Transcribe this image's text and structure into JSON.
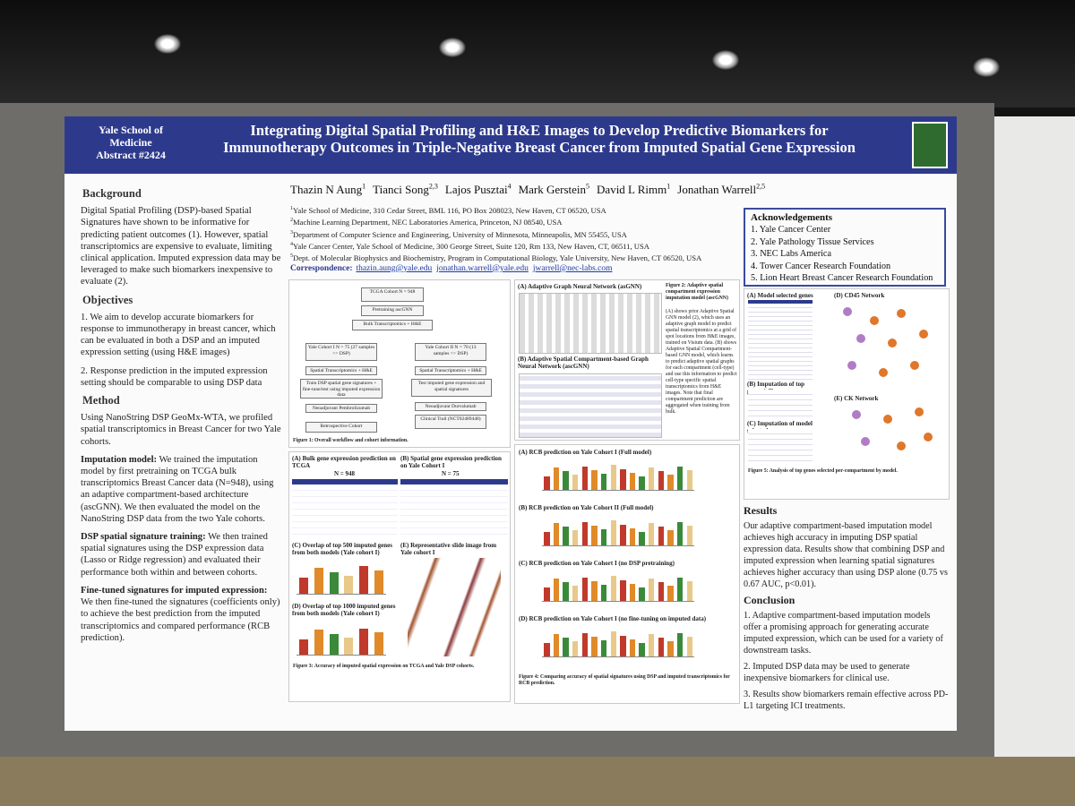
{
  "header": {
    "school": [
      "Yale School of",
      "Medicine",
      "Abstract #2424"
    ],
    "title": "Integrating Digital Spatial Profiling and H&E Images to Develop Predictive Biomarkers for Immunotherapy Outcomes in Triple-Negative Breast Cancer from Imputed Spatial Gene Expression"
  },
  "authors": [
    {
      "name": "Thazin N Aung",
      "sup": "1"
    },
    {
      "name": "Tianci Song",
      "sup": "2,3"
    },
    {
      "name": "Lajos Pusztai",
      "sup": "4"
    },
    {
      "name": "Mark Gerstein",
      "sup": "5"
    },
    {
      "name": "David L Rimm",
      "sup": "1"
    },
    {
      "name": "Jonathan Warrell",
      "sup": "2,5"
    }
  ],
  "affiliations": [
    {
      "num": "1",
      "text": "Yale School of Medicine, 310 Cedar Street, BML 116, PO Box 208023, New Haven, CT 06520, USA"
    },
    {
      "num": "2",
      "text": "Machine Learning Department, NEC Laboratories America, Princeton, NJ 08540, USA"
    },
    {
      "num": "3",
      "text": "Department of Computer Science and Engineering, University of Minnesota, Minneapolis, MN 55455, USA"
    },
    {
      "num": "4",
      "text": "Yale Cancer Center, Yale School of Medicine, 300 George Street, Suite 120, Rm 133, New Haven, CT, 06511, USA"
    },
    {
      "num": "5",
      "text": "Dept. of Molecular Biophysics and Biochemistry, Program in Computational Biology, Yale University, New Haven, CT 06520, USA"
    }
  ],
  "correspondence": {
    "label": "Correspondence:",
    "emails": [
      "thazin.aung@yale.edu",
      "jonathan.warrell@yale.edu",
      "jwarrell@nec-labs.com"
    ]
  },
  "left_column": [
    {
      "heading": "Background",
      "paragraphs": [
        {
          "lead": null,
          "text": "Digital Spatial Profiling (DSP)-based Spatial Signatures have shown to be informative for predicting patient outcomes (1). However, spatial transcriptomics are expensive to evaluate, limiting clinical application. Imputed expression data may be leveraged to make such biomarkers inexpensive to evaluate (2)."
        }
      ]
    },
    {
      "heading": "Objectives",
      "paragraphs": [
        {
          "lead": null,
          "text": "1. We aim to develop accurate biomarkers for response to immunotherapy in breast cancer, which can be evaluated in both a DSP and an imputed expression setting (using H&E images)"
        },
        {
          "lead": null,
          "text": "2. Response prediction in the imputed expression setting should be comparable to using DSP data"
        }
      ]
    },
    {
      "heading": "Method",
      "paragraphs": [
        {
          "lead": null,
          "text": "Using NanoString DSP GeoMx-WTA, we profiled spatial transcriptomics in Breast Cancer for two Yale cohorts."
        },
        {
          "lead": "Imputation model:",
          "text": "We trained the imputation model by first pretraining on TCGA bulk transcriptomics Breast Cancer data (N=948), using an adaptive compartment-based architecture (ascGNN). We then evaluated the model on the NanoString DSP data from the two Yale cohorts."
        },
        {
          "lead": "DSP spatial signature training:",
          "text": "We then trained spatial signatures using the DSP expression data (Lasso or Ridge regression) and evaluated their performance both within and between cohorts."
        },
        {
          "lead": "Fine-tuned signatures for imputed expression:",
          "text": "We then fine-tuned the signatures (coefficients only) to achieve the best prediction from the imputed transcriptomics and compared performance (RCB prediction)."
        }
      ]
    }
  ],
  "figure1": {
    "nodes": [
      "TCGA Cohort N = 948",
      "Pretraining ascGNN",
      "Bulk Transcriptomics + H&E",
      "Yale Cohort I N = 75 (27 samples >> DSP)",
      "Yale Cohort II N = 70 (13 samples >> DSP)",
      "Spatial Transcriptomics + H&E",
      "Spatial Transcriptomics + H&E",
      "Train DSP spatial gene signatures + fine-tune/test using imputed expression data",
      "Test imputed gene expression and spatial signatures",
      "Neoadjuvant Pembrolizumab",
      "Neoadjuvant Durvalumab",
      "Retrospective Cohort",
      "Clinical Trail (NCT02489448)"
    ],
    "caption": "Figure 1: Overall workflow and cohort information."
  },
  "figure2": {
    "panels": [
      "(A) Adaptive Graph Neural Network (asGNN)",
      "(B) Adaptive Spatial Compartment-based Graph Neural Network (ascGNN)"
    ],
    "caption_title": "Figure 2: Adaptive spatial compartment expression imputation model (ascGNN)",
    "caption": "(A) shows prior Adaptive Spatial GNN model (2), which uses an adaptive graph model to predict spatial transcriptomics at a grid of spot locations from H&E images, trained on Visium data. (B) shows Adaptive Spatial Compartment-based GNN model, which learns to predict adaptive spatial graphs for each compartment (cell-type) and use this information to predict cell-type specific spatial transcriptomics from H&E images. Note that final compartment prediction are aggregated when training from bulk."
  },
  "figure3": {
    "panels": [
      "(A) Bulk gene expression prediction on TCGA",
      "(B) Spatial gene expression prediction on Yale Cohort I",
      "(C) Overlap of top 500 imputed genes from both models (Yale cohort I)",
      "(D) Overlap of top 1000 imputed genes from both models (Yale cohort I)",
      "(E) Representative slide image from Yale cohort I"
    ],
    "n_labels": [
      "N = 948",
      "N = 75"
    ],
    "caption": "Figure 3: Accuracy of imputed spatial expression on TCGA and Yale DSP cohorts."
  },
  "figure4": {
    "panels": [
      "(A) RCB prediction on Yale Cohort I (Full model)",
      "(B) RCB prediction on Yale Cohort II (Full model)",
      "(C) RCB prediction on Yale Cohort I (no DSP pretraining)",
      "(D) RCB prediction on Yale Cohort I (no fine-tuning on imputed data)"
    ],
    "caption": "Figure 4: Comparing accuracy of spatial signatures using DSP and imputed transcriptomics for RCB prediction."
  },
  "acknowledgements": {
    "title": "Acknowledgements",
    "items": [
      "1. Yale Cancer Center",
      "2. Yale Pathology Tissue Services",
      "3. NEC Labs America",
      "4. Tower Cancer Research Foundation",
      "5. Lion Heart Breast Cancer Research Foundation"
    ]
  },
  "figure5": {
    "panels": [
      "(A) Model selected genes",
      "(B) Imputation of top genes (all)",
      "(C) Imputation of model selected genes",
      "(D) CD45 Network",
      "(E) CK Network"
    ],
    "caption": "Figure 5: Analysis of top genes selected per-compartment by model."
  },
  "results": {
    "heading": "Results",
    "text": "Our adaptive compartment-based imputation model achieves high accuracy in imputing DSP spatial expression data. Results show that combining DSP and imputed expression when learning spatial signatures achieves higher accuracy than using DSP alone (0.75 vs 0.67 AUC, p<0.01)."
  },
  "conclusion": {
    "heading": "Conclusion",
    "items": [
      "1. Adaptive compartment-based imputation models offer a promising approach for generating accurate imputed expression, which can be used for a variety of downstream tasks.",
      "2. Imputed DSP data may be used to generate inexpensive biomarkers for clinical use.",
      "3. Results show biomarkers remain effective across PD-L1 targeting ICI treatments."
    ]
  }
}
